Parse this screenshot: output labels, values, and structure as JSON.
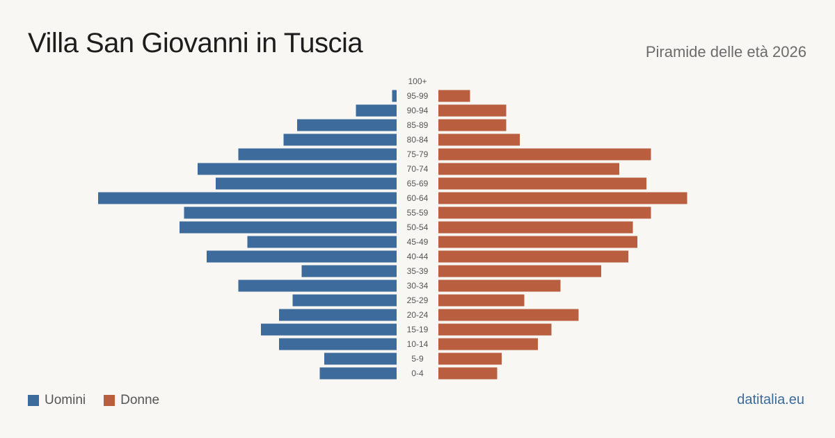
{
  "header": {
    "title": "Villa San Giovanni in Tuscia",
    "subtitle": "Piramide delle età 2026"
  },
  "footer": {
    "site": "datitalia.eu"
  },
  "legend": {
    "men": "Uomini",
    "women": "Donne"
  },
  "colors": {
    "men": "#3d6b9b",
    "women": "#b95f3f",
    "background": "#f9f7f3",
    "tick_label": "#555555"
  },
  "chart_data": {
    "type": "bar",
    "orientation": "horizontal-pyramid",
    "categories": [
      "100+",
      "95-99",
      "90-94",
      "85-89",
      "80-84",
      "75-79",
      "70-74",
      "65-69",
      "60-64",
      "55-59",
      "50-54",
      "45-49",
      "40-44",
      "35-39",
      "30-34",
      "25-29",
      "20-24",
      "15-19",
      "10-14",
      "5-9",
      "0-4"
    ],
    "series": [
      {
        "name": "Uomini",
        "values": [
          0,
          1,
          9,
          22,
          25,
          35,
          44,
          40,
          66,
          47,
          48,
          33,
          42,
          21,
          35,
          23,
          26,
          30,
          26,
          16,
          17
        ]
      },
      {
        "name": "Donne",
        "values": [
          0,
          7,
          15,
          15,
          18,
          47,
          40,
          46,
          55,
          47,
          43,
          44,
          42,
          36,
          27,
          19,
          31,
          25,
          22,
          14,
          13
        ]
      }
    ],
    "legend_position": "bottom-left",
    "grid": false
  }
}
